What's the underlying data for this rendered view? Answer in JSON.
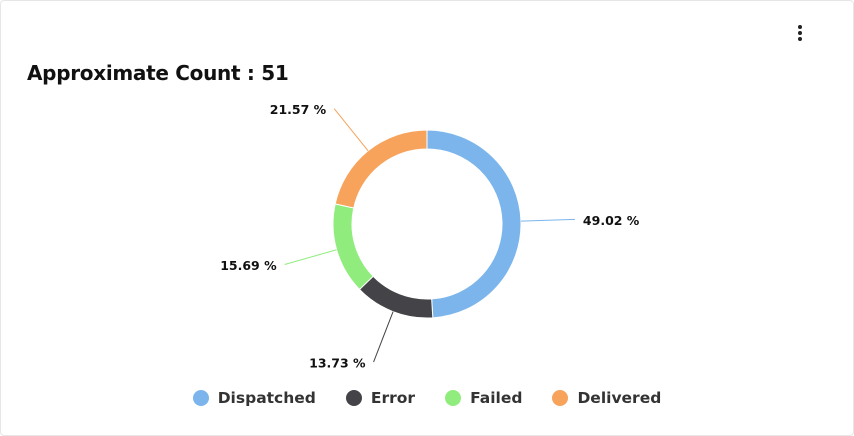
{
  "chart_data": {
    "type": "pie",
    "title": "Approximate Count : 51",
    "categories": [
      "Dispatched",
      "Error",
      "Failed",
      "Delivered"
    ],
    "values": [
      49.02,
      13.73,
      15.69,
      21.57
    ],
    "value_labels": [
      "49.02 %",
      "13.73 %",
      "15.69 %",
      "21.57 %"
    ],
    "colors": [
      "#7cb5ec",
      "#434348",
      "#90ed7d",
      "#f7a35c"
    ]
  }
}
